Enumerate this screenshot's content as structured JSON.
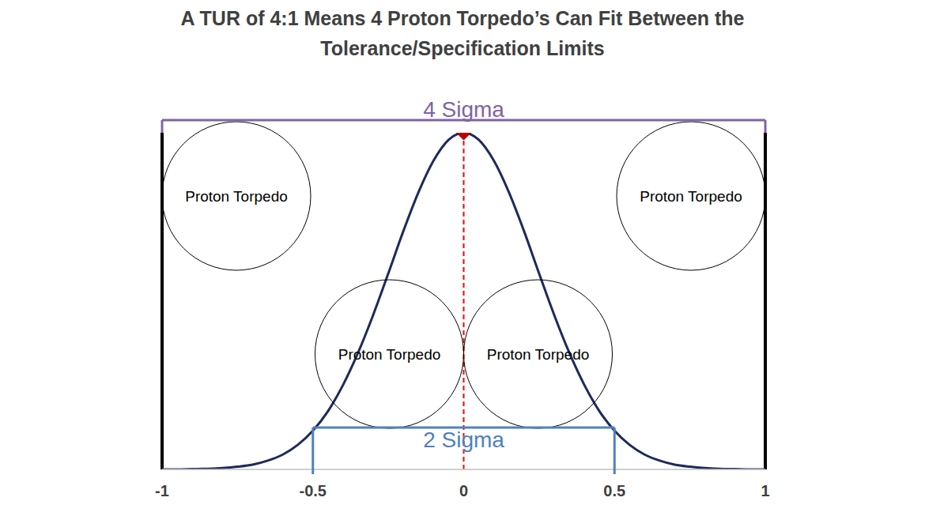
{
  "chart_data": {
    "type": "line",
    "title": "A TUR of 4:1 Means 4 Proton Torpedo’s Can Fit Between the Tolerance/Specification Limits",
    "x": [
      -1,
      -0.95,
      -0.9,
      -0.85,
      -0.8,
      -0.75,
      -0.7,
      -0.65,
      -0.6,
      -0.55,
      -0.5,
      -0.45,
      -0.4,
      -0.35,
      -0.3,
      -0.25,
      -0.2,
      -0.15,
      -0.1,
      -0.05,
      0,
      0.05,
      0.1,
      0.15,
      0.2,
      0.25,
      0.3,
      0.35,
      0.4,
      0.45,
      0.5,
      0.55,
      0.6,
      0.65,
      0.7,
      0.75,
      0.8,
      0.85,
      0.9,
      0.95,
      1
    ],
    "values": [
      0,
      0,
      0.001,
      0.002,
      0.004,
      0.008,
      0.014,
      0.026,
      0.044,
      0.073,
      0.115,
      0.173,
      0.251,
      0.347,
      0.459,
      0.582,
      0.708,
      0.823,
      0.917,
      0.979,
      1,
      0.979,
      0.917,
      0.823,
      0.708,
      0.582,
      0.459,
      0.347,
      0.251,
      0.173,
      0.115,
      0.073,
      0.044,
      0.026,
      0.014,
      0.008,
      0.004,
      0.002,
      0.001,
      0,
      0
    ],
    "color": "#1f2a5a",
    "xlim": [
      -1,
      1
    ],
    "xticks": [
      -1,
      -0.5,
      0,
      0.5,
      1
    ],
    "ylim": [
      0,
      1
    ],
    "tick_labels": "x",
    "grid": false,
    "spec_limits": [
      -1,
      1
    ],
    "mean": {
      "x": 0,
      "color": "#ff0000",
      "line_style": "dashed"
    },
    "brackets": [
      {
        "label": "4 Sigma",
        "x": [
          -1,
          1
        ],
        "color": "#8064a2"
      },
      {
        "label": "2 Sigma",
        "x": [
          -0.5,
          0.5
        ],
        "color": "#4f81bd"
      }
    ],
    "annotations": [
      "Proton Torpedo",
      "Proton Torpedo",
      "Proton Torpedo",
      "Proton Torpedo"
    ]
  }
}
